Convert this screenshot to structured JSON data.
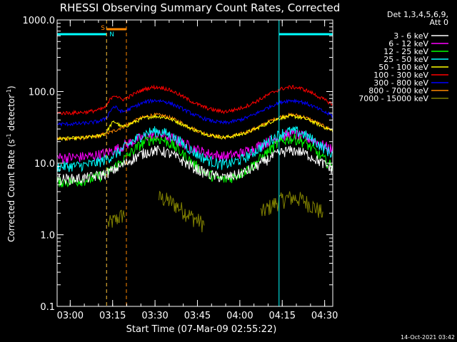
{
  "chart_data": {
    "type": "line",
    "title": "RHESSI Observing Summary Count Rates, Corrected",
    "ylabel_main": "Corrected Count Rate (s",
    "ylabel_sup1": "-1",
    "ylabel_mid": " detector",
    "ylabel_sup2": "-1",
    "ylabel_end": ")",
    "xlabel": "Start Time (07-Mar-09 02:55:22)",
    "y_scale": "log",
    "ylim": [
      0.1,
      1000
    ],
    "xlim_minutes": [
      0,
      97.5
    ],
    "y_ticks": [
      "1000.0",
      "100.0",
      "10.0",
      "1.0",
      "0.1"
    ],
    "x_ticks": [
      "03:00",
      "03:15",
      "03:30",
      "03:45",
      "04:00",
      "04:15",
      "04:30"
    ],
    "x_tick_minutes": [
      4.63,
      19.63,
      34.63,
      49.63,
      64.63,
      79.63,
      94.63
    ],
    "legend_header": [
      "Det 1,3,4,5,6,9,",
      "Att 0"
    ],
    "legend_position": "top-right",
    "timestamp": "14-Oct-2021 03:42",
    "series": [
      {
        "name": "3 - 6 keV",
        "color": "#ffffff",
        "peak": 15,
        "base": 6
      },
      {
        "name": "6 - 12 keV",
        "color": "#ff00ff",
        "peak": 25,
        "base": 12
      },
      {
        "name": "12 - 25 keV",
        "color": "#00ff00",
        "peak": 22,
        "base": 5.5
      },
      {
        "name": "25 - 50 keV",
        "color": "#00ffff",
        "peak": 28,
        "base": 9
      },
      {
        "name": "50 - 100 keV",
        "color": "#ffff00",
        "peak": 45,
        "base": 22
      },
      {
        "name": "100 - 300 keV",
        "color": "#ff0000",
        "peak": 115,
        "base": 50
      },
      {
        "name": "300 - 800 keV",
        "color": "#0000ff",
        "peak": 75,
        "base": 35
      },
      {
        "name": "800 - 7000 keV",
        "color": "#ff8800",
        "peak": 47,
        "base": 22
      },
      {
        "name": "7000 - 15000 keV",
        "color": "#808000",
        "peak": 3,
        "base": 1
      }
    ],
    "flags": {
      "saa_label": "S",
      "night_label": "N",
      "night_color": "#00ffff",
      "saa_color": "#ff8800",
      "night_intervals_minutes": [
        [
          0,
          17.5
        ],
        [
          78.5,
          97.5
        ]
      ],
      "saa_interval_minutes": [
        17.5,
        24.5
      ]
    }
  }
}
